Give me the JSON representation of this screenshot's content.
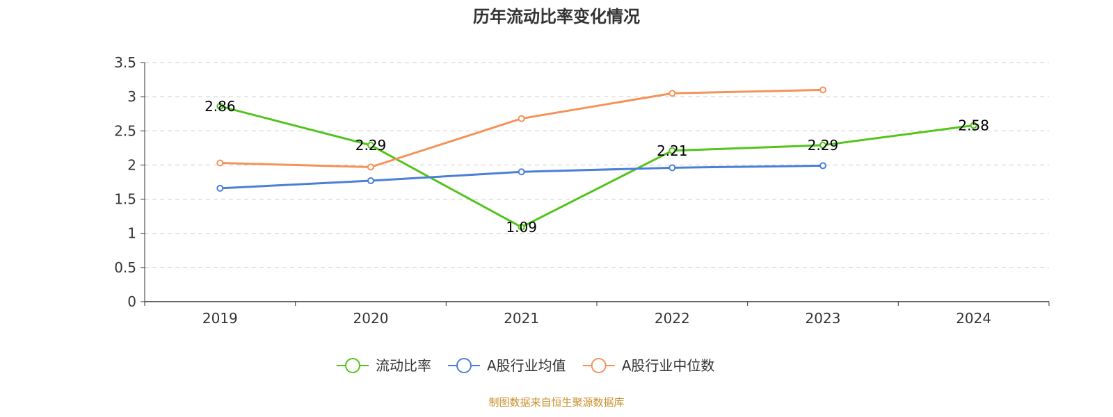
{
  "chart_data": {
    "type": "line",
    "title": "历年流动比率变化情况",
    "xlabel": "",
    "ylabel": "",
    "categories": [
      "2019",
      "2020",
      "2021",
      "2022",
      "2023",
      "2024"
    ],
    "ylim": [
      0,
      3.5
    ],
    "yticks": [
      "0",
      "0.5",
      "1",
      "1.5",
      "2",
      "2.5",
      "3",
      "3.5"
    ],
    "grid": true,
    "legend_position": "bottom",
    "series": [
      {
        "name": "流动比率",
        "color": "#52c41a",
        "values": [
          2.86,
          2.29,
          1.09,
          2.21,
          2.29,
          2.58
        ],
        "labels": [
          "2.86",
          "2.29",
          "1.09",
          "2.21",
          "2.29",
          "2.58"
        ]
      },
      {
        "name": "A股行业均值",
        "color": "#4a7fd9",
        "values": [
          1.66,
          1.77,
          1.9,
          1.96,
          1.99,
          null
        ]
      },
      {
        "name": "A股行业中位数",
        "color": "#f5925a",
        "values": [
          2.03,
          1.97,
          2.68,
          3.05,
          3.1,
          null
        ]
      }
    ],
    "source_text": "制图数据来自恒生聚源数据库",
    "source_color": "#c8902c"
  }
}
